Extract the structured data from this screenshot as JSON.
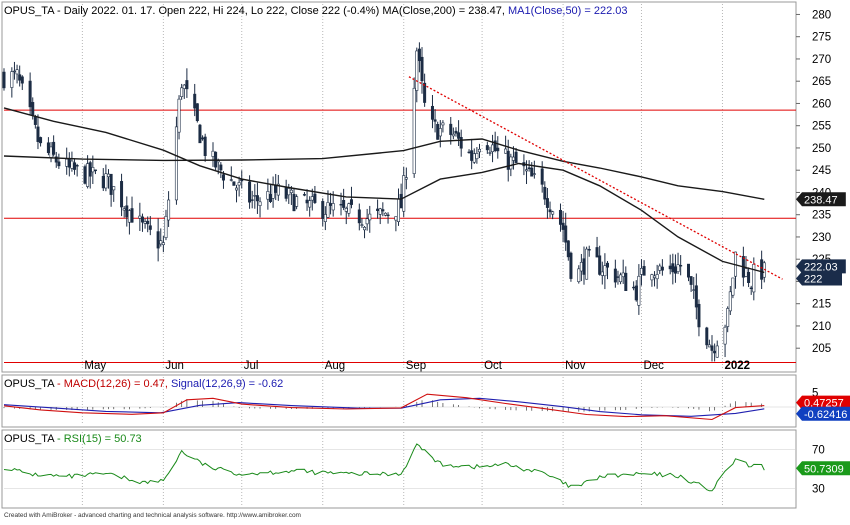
{
  "chart_data": [
    {
      "type": "candlestick",
      "panel": "price",
      "header": {
        "ticker": "OPUS_TA",
        "info": " - Daily 2022. 01. 17. Open 222, Hi 224, Lo 222, Close 222 (-0.4%) ",
        "ma200": "MA(Close,200) = 238.47,",
        "ma50": " MA1(Close,50) = 222.03"
      },
      "x_tick_labels": [
        "May",
        "Jun",
        "Jul",
        "Aug",
        "Sep",
        "Oct",
        "Nov",
        "Dec",
        "2022"
      ],
      "y_tick_labels": [
        "280",
        "275",
        "270",
        "265",
        "260",
        "255",
        "250",
        "245",
        "240",
        "235",
        "230",
        "225",
        "220",
        "215",
        "210",
        "205"
      ],
      "y_ticks": [
        280,
        275,
        270,
        265,
        260,
        255,
        250,
        245,
        240,
        235,
        230,
        225,
        220,
        215,
        210,
        205
      ],
      "ylim": [
        201,
        281
      ],
      "horizontal_levels": [
        258.5,
        234.2,
        201.8
      ],
      "trendline": {
        "from": {
          "x": "2021-09-03",
          "y": 266
        },
        "to": {
          "x": "2022-01-24",
          "y": 220.5
        }
      },
      "value_tags": [
        {
          "label": "238.47",
          "value": 238.47,
          "style": "dark"
        },
        {
          "label": "222.03",
          "value": 222.03,
          "style": "navy"
        },
        {
          "label": "222",
          "value": 222,
          "style": "navy"
        }
      ],
      "close_anchors": [
        [
          "2021-04-06",
          266
        ],
        [
          "2021-04-15",
          250
        ],
        [
          "2021-04-26",
          245
        ],
        [
          "2021-05-10",
          243
        ],
        [
          "2021-05-24",
          232
        ],
        [
          "2021-06-01",
          228
        ],
        [
          "2021-06-08",
          265
        ],
        [
          "2021-06-14",
          255
        ],
        [
          "2021-06-18",
          248
        ],
        [
          "2021-06-28",
          242
        ],
        [
          "2021-07-05",
          238
        ],
        [
          "2021-07-15",
          240
        ],
        [
          "2021-07-26",
          237
        ],
        [
          "2021-08-05",
          236
        ],
        [
          "2021-08-20",
          234
        ],
        [
          "2021-08-31",
          237
        ],
        [
          "2021-09-03",
          250
        ],
        [
          "2021-09-06",
          272
        ],
        [
          "2021-09-10",
          255
        ],
        [
          "2021-09-20",
          253
        ],
        [
          "2021-09-27",
          248
        ],
        [
          "2021-10-01",
          253
        ],
        [
          "2021-10-08",
          248
        ],
        [
          "2021-10-15",
          246
        ],
        [
          "2021-10-25",
          240
        ],
        [
          "2021-11-01",
          232
        ],
        [
          "2021-11-05",
          220
        ],
        [
          "2021-11-10",
          225
        ],
        [
          "2021-11-20",
          222
        ],
        [
          "2021-11-29",
          218
        ],
        [
          "2021-12-03",
          224
        ],
        [
          "2021-12-10",
          222
        ],
        [
          "2021-12-17",
          224
        ],
        [
          "2021-12-23",
          212
        ],
        [
          "2021-12-28",
          205
        ],
        [
          "2022-01-03",
          212
        ],
        [
          "2022-01-06",
          226
        ],
        [
          "2022-01-12",
          220
        ],
        [
          "2022-01-14",
          223
        ],
        [
          "2022-01-17",
          222
        ]
      ],
      "ma200_anchors": [
        [
          "2021-04-01",
          248.2
        ],
        [
          "2021-05-01",
          247.5
        ],
        [
          "2021-06-01",
          247.2
        ],
        [
          "2021-07-01",
          247.3
        ],
        [
          "2021-08-01",
          247.6
        ],
        [
          "2021-09-01",
          249.4
        ],
        [
          "2021-09-15",
          251.5
        ],
        [
          "2021-10-01",
          252
        ],
        [
          "2021-10-15",
          249.5
        ],
        [
          "2021-11-01",
          247
        ],
        [
          "2021-11-15",
          245.5
        ],
        [
          "2021-12-01",
          243.5
        ],
        [
          "2021-12-15",
          241.5
        ],
        [
          "2022-01-01",
          240.2
        ],
        [
          "2022-01-17",
          238.47
        ]
      ],
      "ma50_anchors": [
        [
          "2021-04-01",
          259
        ],
        [
          "2021-04-20",
          256
        ],
        [
          "2021-05-10",
          253.5
        ],
        [
          "2021-06-01",
          249.5
        ],
        [
          "2021-06-15",
          246
        ],
        [
          "2021-07-01",
          243
        ],
        [
          "2021-07-20",
          241
        ],
        [
          "2021-08-10",
          239
        ],
        [
          "2021-08-31",
          238.5
        ],
        [
          "2021-09-15",
          243
        ],
        [
          "2021-10-01",
          244.5
        ],
        [
          "2021-10-15",
          246.5
        ],
        [
          "2021-11-01",
          245
        ],
        [
          "2021-11-15",
          241.5
        ],
        [
          "2021-12-01",
          236
        ],
        [
          "2021-12-15",
          230
        ],
        [
          "2022-01-01",
          224.5
        ],
        [
          "2022-01-17",
          222.03
        ]
      ]
    },
    {
      "type": "line",
      "panel": "macd",
      "header": {
        "ticker": "OPUS_TA",
        "macd": " - MACD(12,26) = 0.47,",
        "signal": " Signal(12,26,9) = -0.62"
      },
      "y_tick_labels": [
        "5"
      ],
      "y_ticks": [
        5
      ],
      "ylim": [
        -7,
        7
      ],
      "value_tags": [
        {
          "label": "0.47257",
          "value": 0.47,
          "style": "red"
        },
        {
          "label": "-0.62416",
          "value": -0.62,
          "style": "blue"
        }
      ],
      "macd_anchors": [
        [
          "2021-04-01",
          0.4
        ],
        [
          "2021-04-15",
          -1
        ],
        [
          "2021-05-01",
          -2
        ],
        [
          "2021-05-20",
          -2.5
        ],
        [
          "2021-06-01",
          -2
        ],
        [
          "2021-06-10",
          2.5
        ],
        [
          "2021-06-20",
          3
        ],
        [
          "2021-07-01",
          1
        ],
        [
          "2021-07-20",
          -0.2
        ],
        [
          "2021-08-10",
          -0.7
        ],
        [
          "2021-08-31",
          -0.3
        ],
        [
          "2021-09-10",
          4.4
        ],
        [
          "2021-09-25",
          3.2
        ],
        [
          "2021-10-10",
          1.2
        ],
        [
          "2021-10-25",
          -0.6
        ],
        [
          "2021-11-10",
          -2.6
        ],
        [
          "2021-11-25",
          -3.3
        ],
        [
          "2021-12-10",
          -3
        ],
        [
          "2021-12-28",
          -4.3
        ],
        [
          "2022-01-06",
          -0.2
        ],
        [
          "2022-01-17",
          0.47
        ]
      ],
      "signal_anchors": [
        [
          "2021-04-01",
          0.8
        ],
        [
          "2021-04-20",
          -0.3
        ],
        [
          "2021-05-10",
          -1.5
        ],
        [
          "2021-05-31",
          -2
        ],
        [
          "2021-06-15",
          0.6
        ],
        [
          "2021-06-30",
          1.5
        ],
        [
          "2021-07-20",
          0.5
        ],
        [
          "2021-08-15",
          -0.4
        ],
        [
          "2021-08-31",
          -0.4
        ],
        [
          "2021-09-15",
          2.5
        ],
        [
          "2021-09-30",
          3
        ],
        [
          "2021-10-15",
          1.8
        ],
        [
          "2021-11-01",
          0.1
        ],
        [
          "2021-11-15",
          -1.6
        ],
        [
          "2021-12-01",
          -2.7
        ],
        [
          "2021-12-20",
          -3.2
        ],
        [
          "2022-01-06",
          -2.2
        ],
        [
          "2022-01-17",
          -0.62
        ]
      ]
    },
    {
      "type": "line",
      "panel": "rsi",
      "header": {
        "ticker": "OPUS_TA",
        "rsi": " - RSI(15) = 50.73"
      },
      "y_tick_labels": [
        "70",
        "30"
      ],
      "y_ticks": [
        70,
        30
      ],
      "ylim": [
        10,
        90
      ],
      "value_tags": [
        {
          "label": "50.7309",
          "value": 50.73,
          "style": "green"
        }
      ],
      "rsi_anchors": [
        [
          "2021-04-01",
          52
        ],
        [
          "2021-04-10",
          45
        ],
        [
          "2021-04-25",
          42
        ],
        [
          "2021-05-10",
          45
        ],
        [
          "2021-05-25",
          36
        ],
        [
          "2021-06-01",
          38
        ],
        [
          "2021-06-08",
          68
        ],
        [
          "2021-06-18",
          52
        ],
        [
          "2021-07-01",
          45
        ],
        [
          "2021-07-20",
          48
        ],
        [
          "2021-08-10",
          45
        ],
        [
          "2021-08-31",
          45
        ],
        [
          "2021-09-06",
          75
        ],
        [
          "2021-09-15",
          55
        ],
        [
          "2021-09-30",
          52
        ],
        [
          "2021-10-10",
          55
        ],
        [
          "2021-10-25",
          45
        ],
        [
          "2021-11-05",
          30
        ],
        [
          "2021-11-15",
          42
        ],
        [
          "2021-12-01",
          45
        ],
        [
          "2021-12-15",
          43
        ],
        [
          "2021-12-28",
          28
        ],
        [
          "2022-01-06",
          60
        ],
        [
          "2022-01-12",
          52
        ],
        [
          "2022-01-14",
          55
        ],
        [
          "2022-01-17",
          50.73
        ]
      ]
    }
  ],
  "footer": {
    "credit": "Created with AmiBroker - advanced charting and technical analysis software. http://www.amibroker.com"
  },
  "colors": {
    "candle_up": "#ffffff",
    "candle_down": "#1c2c44",
    "candle_outline": "#1c2c44",
    "level_line": "#e00000",
    "trendline": "#e00000",
    "ma200": "#1a1a1a",
    "ma50": "#1a1a1a",
    "macd": "#d01010",
    "signal": "#2020b0",
    "histogram": "#555555",
    "rsi": "#1a8a1a",
    "tag_dark": "#1a1a1a",
    "tag_navy": "#1a2c4a",
    "tag_red": "#e00000",
    "tag_blue": "#1040c0",
    "tag_green": "#1a9a1a",
    "header_blue": "#1a1ab0",
    "header_red": "#c00000",
    "header_green": "#1a8a1a",
    "grid": "#b8b8b8"
  }
}
